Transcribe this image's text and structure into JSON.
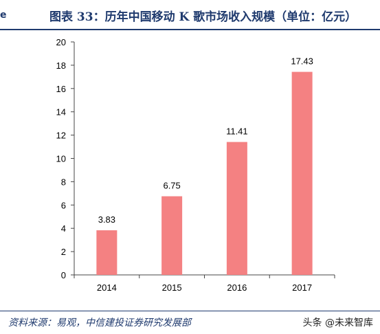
{
  "header": {
    "edge_mark": "e",
    "title": "图表 33：历年中国移动 K 歌市场收入规模（单位：亿元）"
  },
  "footer": {
    "source": "资料来源：易观，中信建投证券研究发展部",
    "watermark": "头条 @未来智库"
  },
  "colors": {
    "bar": "#f48182",
    "accent": "#1f3a6e",
    "axis": "#444444"
  },
  "chart_data": {
    "type": "bar",
    "title": "图表 33：历年中国移动 K 歌市场收入规模（单位：亿元）",
    "categories": [
      "2014",
      "2015",
      "2016",
      "2017"
    ],
    "values": [
      3.83,
      6.75,
      11.41,
      17.43
    ],
    "data_labels": [
      "3.83",
      "6.75",
      "11.41",
      "17.43"
    ],
    "xlabel": "",
    "ylabel": "",
    "ylim": [
      0,
      20
    ],
    "yticks": [
      0,
      2,
      4,
      6,
      8,
      10,
      12,
      14,
      16,
      18,
      20
    ],
    "grid": false,
    "legend": "none"
  }
}
